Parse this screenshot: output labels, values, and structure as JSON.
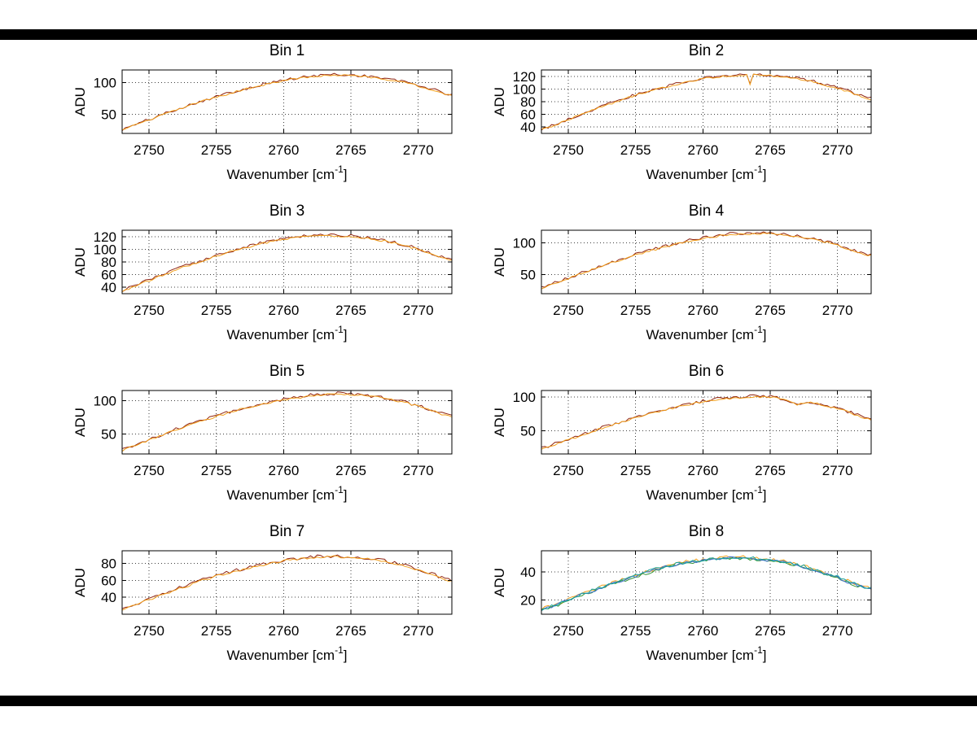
{
  "figure": {
    "background": "#ffffff",
    "bar_color": "#000000",
    "grid_color": "#404040",
    "axis_color": "#000000",
    "text_color": "#000000"
  },
  "labels": {
    "ylabel": "ADU",
    "xlabel_main": "Wavenumber [cm",
    "xlabel_sup": "-1",
    "xlabel_end": "]"
  },
  "axis": {
    "xlim": [
      2748,
      2772.5
    ],
    "xticks": [
      2750,
      2755,
      2760,
      2765,
      2770
    ],
    "x_start": 2748,
    "x_step": 1
  },
  "chart_data": [
    {
      "type": "line",
      "title": "Bin 1",
      "xlabel": "Wavenumber [cm-1]",
      "ylabel": "ADU",
      "ylim": [
        20,
        120
      ],
      "yticks": [
        50,
        100
      ],
      "values": [
        25,
        33,
        41,
        49,
        57,
        64,
        71,
        77,
        83,
        89,
        94,
        99,
        103,
        106,
        109,
        111,
        112,
        111,
        110,
        107,
        104,
        100,
        95,
        89,
        82,
        78
      ],
      "series": [
        {
          "name": "trace-darkred",
          "color": "#8f2310",
          "offset": 1.0,
          "noise": 2.4,
          "seed": 101
        },
        {
          "name": "trace-orange",
          "color": "#f2a01c",
          "offset": 0.0,
          "noise": 1.5,
          "seed": 102
        }
      ]
    },
    {
      "type": "line",
      "title": "Bin 2",
      "xlabel": "Wavenumber [cm-1]",
      "ylabel": "ADU",
      "ylim": [
        30,
        130
      ],
      "yticks": [
        40,
        60,
        80,
        100,
        120
      ],
      "spike": {
        "x": 2763.6,
        "depth": 16
      },
      "values": [
        35,
        43,
        52,
        60,
        68,
        76,
        83,
        90,
        96,
        102,
        107,
        112,
        116,
        119,
        121,
        122,
        122,
        121,
        119,
        116,
        112,
        107,
        101,
        94,
        86,
        82
      ],
      "series": [
        {
          "name": "trace-darkred",
          "color": "#8f2310",
          "offset": 1.0,
          "noise": 2.4,
          "seed": 103
        },
        {
          "name": "trace-orange",
          "color": "#f2a01c",
          "offset": 0.0,
          "noise": 1.5,
          "seed": 104
        }
      ]
    },
    {
      "type": "line",
      "title": "Bin 3",
      "xlabel": "Wavenumber [cm-1]",
      "ylabel": "ADU",
      "ylim": [
        30,
        130
      ],
      "yticks": [
        40,
        60,
        80,
        100,
        120
      ],
      "values": [
        34,
        42,
        51,
        59,
        67,
        75,
        82,
        89,
        96,
        102,
        107,
        112,
        116,
        119,
        121,
        122,
        121,
        120,
        118,
        115,
        111,
        106,
        100,
        93,
        85,
        81
      ],
      "series": [
        {
          "name": "trace-darkred",
          "color": "#8f2310",
          "offset": 1.0,
          "noise": 2.4,
          "seed": 105
        },
        {
          "name": "trace-orange",
          "color": "#f2a01c",
          "offset": 0.0,
          "noise": 1.6,
          "seed": 106
        }
      ]
    },
    {
      "type": "line",
      "title": "Bin 4",
      "xlabel": "Wavenumber [cm-1]",
      "ylabel": "ADU",
      "ylim": [
        20,
        120
      ],
      "yticks": [
        50,
        100
      ],
      "values": [
        28,
        36,
        44,
        52,
        60,
        67,
        74,
        81,
        87,
        93,
        98,
        103,
        107,
        110,
        113,
        114,
        115,
        114,
        112,
        110,
        106,
        102,
        96,
        89,
        82,
        78
      ],
      "series": [
        {
          "name": "trace-darkred",
          "color": "#8f2310",
          "offset": 1.0,
          "noise": 2.4,
          "seed": 107
        },
        {
          "name": "trace-orange",
          "color": "#f2a01c",
          "offset": 0.0,
          "noise": 1.5,
          "seed": 108
        }
      ]
    },
    {
      "type": "line",
      "title": "Bin 5",
      "xlabel": "Wavenumber [cm-1]",
      "ylabel": "ADU",
      "ylim": [
        20,
        115
      ],
      "yticks": [
        50,
        100
      ],
      "values": [
        25,
        33,
        41,
        48,
        56,
        63,
        70,
        76,
        82,
        88,
        93,
        97,
        101,
        104,
        107,
        109,
        110,
        109,
        107,
        105,
        101,
        97,
        91,
        85,
        78,
        74
      ],
      "series": [
        {
          "name": "trace-darkred",
          "color": "#8f2310",
          "offset": 1.0,
          "noise": 2.4,
          "seed": 109
        },
        {
          "name": "trace-orange",
          "color": "#f2a01c",
          "offset": 0.0,
          "noise": 1.5,
          "seed": 110
        }
      ]
    },
    {
      "type": "line",
      "title": "Bin 6",
      "xlabel": "Wavenumber [cm-1]",
      "ylabel": "ADU",
      "ylim": [
        15,
        110
      ],
      "yticks": [
        50,
        100
      ],
      "values": [
        22,
        29,
        36,
        43,
        50,
        57,
        63,
        69,
        75,
        80,
        85,
        89,
        93,
        96,
        98,
        100,
        101,
        100,
        97,
        89,
        92,
        88,
        83,
        76,
        69,
        65
      ],
      "series": [
        {
          "name": "trace-darkred",
          "color": "#8f2310",
          "offset": 1.0,
          "noise": 2.4,
          "seed": 111
        },
        {
          "name": "trace-orange",
          "color": "#f2a01c",
          "offset": 0.0,
          "noise": 1.5,
          "seed": 112
        }
      ]
    },
    {
      "type": "line",
      "title": "Bin 7",
      "xlabel": "Wavenumber [cm-1]",
      "ylabel": "ADU",
      "ylim": [
        20,
        95
      ],
      "yticks": [
        40,
        60,
        80
      ],
      "values": [
        25,
        31,
        37,
        43,
        49,
        54,
        60,
        65,
        69,
        73,
        77,
        80,
        83,
        85,
        87,
        88,
        88,
        87,
        86,
        84,
        81,
        77,
        72,
        67,
        61,
        58
      ],
      "series": [
        {
          "name": "trace-darkred",
          "color": "#8f2310",
          "offset": 0.8,
          "noise": 2.0,
          "seed": 113
        },
        {
          "name": "trace-orange",
          "color": "#f2a01c",
          "offset": 0.0,
          "noise": 1.3,
          "seed": 114
        }
      ]
    },
    {
      "type": "line",
      "title": "Bin 8",
      "xlabel": "Wavenumber [cm-1]",
      "ylabel": "ADU",
      "ylim": [
        10,
        55
      ],
      "yticks": [
        20,
        40
      ],
      "values": [
        13,
        16,
        20,
        24,
        27,
        31,
        34,
        37,
        40,
        43,
        45,
        47,
        48,
        49,
        50,
        50,
        49,
        48,
        47,
        45,
        42,
        39,
        36,
        32,
        29,
        27
      ],
      "series": [
        {
          "name": "trace-orange",
          "color": "#f2a01c",
          "offset": 0.6,
          "noise": 1.2,
          "seed": 115
        },
        {
          "name": "trace-green",
          "color": "#35953a",
          "offset": -0.4,
          "noise": 1.0,
          "seed": 116
        },
        {
          "name": "trace-blue",
          "color": "#3f6fd0",
          "offset": 0.0,
          "noise": 1.0,
          "seed": 117
        },
        {
          "name": "trace-teal",
          "color": "#19a39b",
          "offset": 0.5,
          "noise": 1.1,
          "seed": 118
        }
      ]
    }
  ]
}
